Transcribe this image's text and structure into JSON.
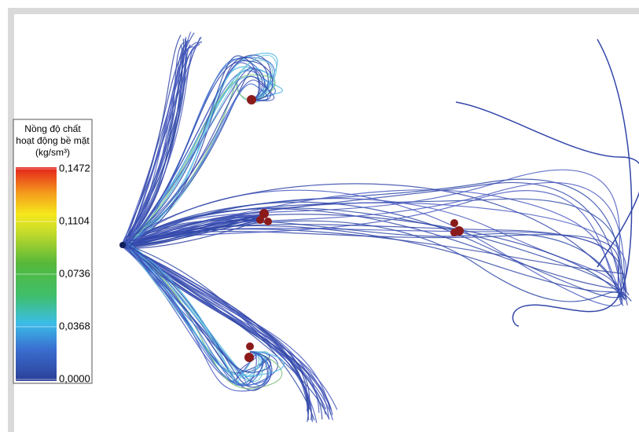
{
  "legend": {
    "title_lines": [
      "Nồng độ chất",
      "hoạt động bề mặt",
      "(kg/sm³)"
    ],
    "clim": [
      0,
      0.1472
    ],
    "ticks": [
      {
        "value": 0.1472,
        "label": "0,1472"
      },
      {
        "value": 0.1104,
        "label": "0,1104"
      },
      {
        "value": 0.0736,
        "label": "0,0736"
      },
      {
        "value": 0.0368,
        "label": "0,0368"
      },
      {
        "value": 0,
        "label": "0,0000"
      }
    ]
  }
}
